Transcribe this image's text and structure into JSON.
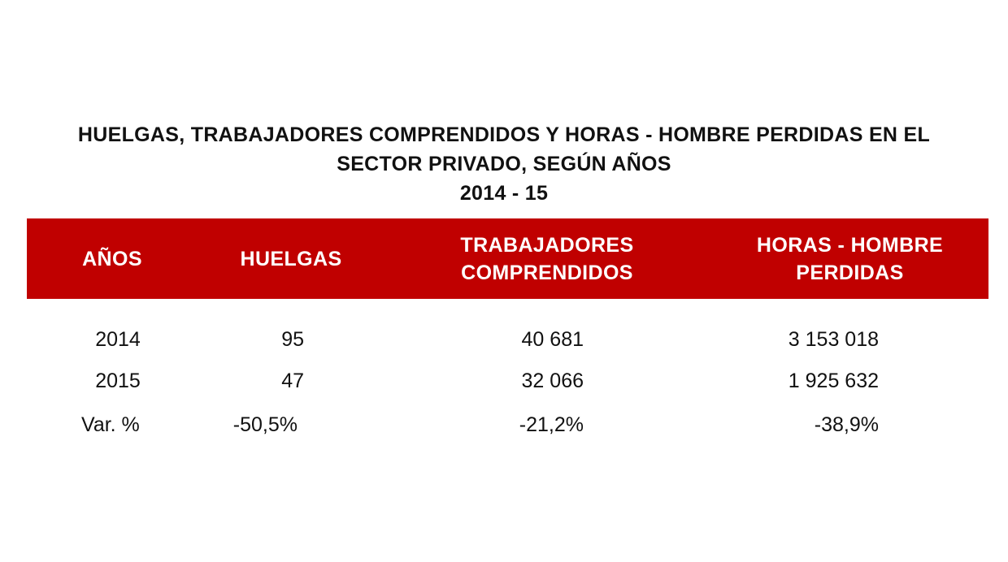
{
  "title": {
    "line1": "HUELGAS, TRABAJADORES COMPRENDIDOS Y HORAS - HOMBRE PERDIDAS EN EL",
    "line2": "SECTOR PRIVADO, SEGÚN AÑOS",
    "line3": "2014 - 15"
  },
  "colors": {
    "header_bg": "#c00000",
    "header_text": "#ffffff"
  },
  "table": {
    "headers": {
      "anos": "AÑOS",
      "huelgas": "HUELGAS",
      "trabajadores": {
        "line1": "TRABAJADORES",
        "line2": "COMPRENDIDOS"
      },
      "horas": {
        "line1": "HORAS - HOMBRE",
        "line2": "PERDIDAS"
      }
    },
    "rows": [
      {
        "year": "2014",
        "huelgas": "95",
        "trabajadores": "40 681",
        "horas": "3 153 018"
      },
      {
        "year": "2015",
        "huelgas": "47",
        "trabajadores": "32 066",
        "horas": "1 925 632"
      },
      {
        "year": "Var. %",
        "huelgas": "-50,5%",
        "trabajadores": "-21,2%",
        "horas": "-38,9%"
      }
    ]
  }
}
